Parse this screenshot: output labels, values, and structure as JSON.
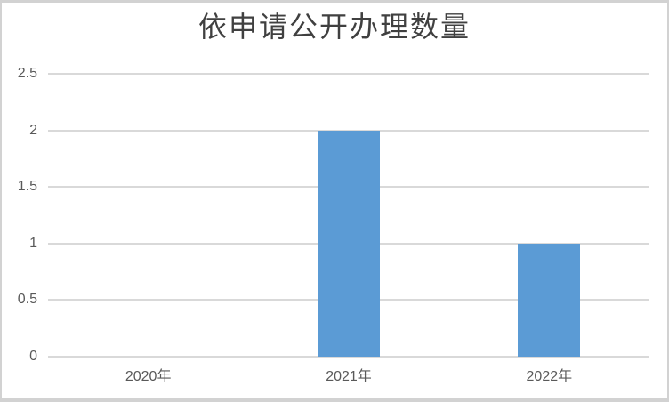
{
  "chart_data": {
    "type": "bar",
    "title": "依申请公开办理数量",
    "categories": [
      "2020年",
      "2021年",
      "2022年"
    ],
    "values": [
      0,
      2,
      1
    ],
    "ylim": [
      0,
      2.5
    ],
    "yticks": [
      "0",
      "0.5",
      "1",
      "1.5",
      "2",
      "2.5"
    ],
    "xlabel": "",
    "ylabel": "",
    "legend": "none",
    "grid": true,
    "colors": {
      "bar": "#5B9BD5",
      "gridline": "#D9D9D9",
      "tick_label": "#595959",
      "title": "#404040",
      "border": "#D2D2D2",
      "background": "#FFFFFF"
    }
  }
}
